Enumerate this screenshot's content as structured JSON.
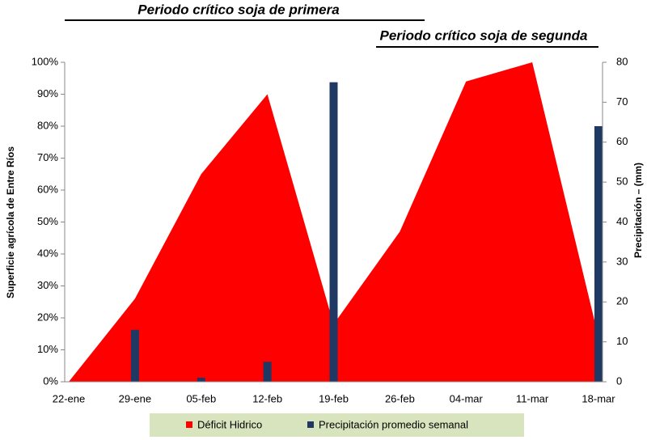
{
  "chart_data": {
    "type": "area-bar",
    "annotations": [
      "Periodo crítico soja de primera",
      "Periodo crítico soja de segunda"
    ],
    "y_label": "Superficie agrícola de Entre Ríos",
    "y2_label": "Precipitación – (mm)",
    "categories": [
      "22-ene",
      "29-ene",
      "05-feb",
      "12-feb",
      "19-feb",
      "26-feb",
      "04-mar",
      "11-mar",
      "18-mar"
    ],
    "series": [
      {
        "name": "Déficit Hidrico",
        "type": "area",
        "color": "#ff0000",
        "values": [
          0,
          26,
          65,
          90,
          18,
          47,
          94,
          100,
          14
        ]
      },
      {
        "name": "Precipitación promedio semanal",
        "type": "bar",
        "axis": "y2",
        "color": "#1f3864",
        "values": [
          0,
          13,
          1,
          5,
          75,
          0,
          0,
          0,
          64
        ]
      }
    ],
    "ylim": [
      0,
      100
    ],
    "yticks": [
      {
        "value": 0,
        "label": "0%"
      },
      {
        "value": 10,
        "label": "10%"
      },
      {
        "value": 20,
        "label": "20%"
      },
      {
        "value": 30,
        "label": "30%"
      },
      {
        "value": 40,
        "label": "40%"
      },
      {
        "value": 50,
        "label": "50%"
      },
      {
        "value": 60,
        "label": "60%"
      },
      {
        "value": 70,
        "label": "70%"
      },
      {
        "value": 80,
        "label": "80%"
      },
      {
        "value": 90,
        "label": "90%"
      },
      {
        "value": 100,
        "label": "100%"
      }
    ],
    "y2lim": [
      0,
      80
    ],
    "y2ticks": [
      0,
      10,
      20,
      30,
      40,
      50,
      60,
      70,
      80
    ],
    "legend": "bottom"
  }
}
